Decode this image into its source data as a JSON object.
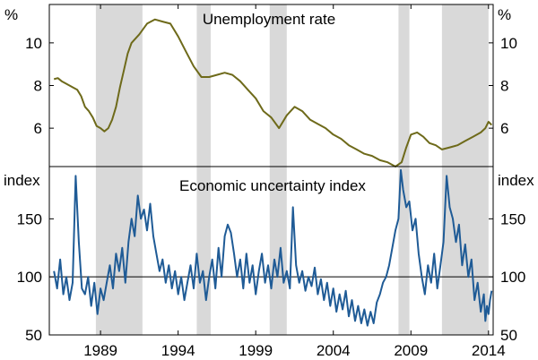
{
  "chart_data": [
    {
      "type": "line",
      "title": "Unemployment rate",
      "unit_left": "%",
      "unit_right": "%",
      "y_ticks": [
        "6",
        "8",
        "10"
      ],
      "ylim": [
        4.2,
        11.8
      ],
      "xlim": [
        1985.7,
        2014.3
      ],
      "shading_periods": [
        [
          1988.7,
          1991.7
        ],
        [
          1995.2,
          1996.1
        ],
        [
          1999.9,
          2001.0
        ],
        [
          2008.2,
          2008.9
        ],
        [
          2011.0,
          2014.0
        ]
      ],
      "series": [
        {
          "color": "#6e6a1a",
          "points": [
            [
              1986.0,
              8.3
            ],
            [
              1986.25,
              8.35
            ],
            [
              1986.5,
              8.2
            ],
            [
              1986.75,
              8.1
            ],
            [
              1987.0,
              8.0
            ],
            [
              1987.25,
              7.9
            ],
            [
              1987.5,
              7.8
            ],
            [
              1987.75,
              7.5
            ],
            [
              1988.0,
              7.0
            ],
            [
              1988.25,
              6.8
            ],
            [
              1988.5,
              6.5
            ],
            [
              1988.75,
              6.1
            ],
            [
              1989.0,
              6.0
            ],
            [
              1989.25,
              5.85
            ],
            [
              1989.5,
              6.0
            ],
            [
              1989.75,
              6.4
            ],
            [
              1990.0,
              7.0
            ],
            [
              1990.25,
              7.9
            ],
            [
              1990.5,
              8.7
            ],
            [
              1990.75,
              9.5
            ],
            [
              1991.0,
              10.0
            ],
            [
              1991.5,
              10.4
            ],
            [
              1992.0,
              10.9
            ],
            [
              1992.5,
              11.1
            ],
            [
              1993.0,
              11.0
            ],
            [
              1993.5,
              10.9
            ],
            [
              1994.0,
              10.3
            ],
            [
              1994.5,
              9.6
            ],
            [
              1995.0,
              8.9
            ],
            [
              1995.5,
              8.4
            ],
            [
              1996.0,
              8.4
            ],
            [
              1996.5,
              8.5
            ],
            [
              1997.0,
              8.6
            ],
            [
              1997.5,
              8.5
            ],
            [
              1998.0,
              8.2
            ],
            [
              1998.5,
              7.8
            ],
            [
              1999.0,
              7.4
            ],
            [
              1999.5,
              6.8
            ],
            [
              2000.0,
              6.5
            ],
            [
              2000.5,
              6.0
            ],
            [
              2001.0,
              6.6
            ],
            [
              2001.5,
              7.0
            ],
            [
              2002.0,
              6.8
            ],
            [
              2002.5,
              6.4
            ],
            [
              2003.0,
              6.2
            ],
            [
              2003.5,
              6.0
            ],
            [
              2004.0,
              5.7
            ],
            [
              2004.5,
              5.5
            ],
            [
              2005.0,
              5.2
            ],
            [
              2005.5,
              5.0
            ],
            [
              2006.0,
              4.8
            ],
            [
              2006.5,
              4.7
            ],
            [
              2007.0,
              4.5
            ],
            [
              2007.5,
              4.4
            ],
            [
              2008.0,
              4.2
            ],
            [
              2008.4,
              4.4
            ],
            [
              2008.7,
              5.1
            ],
            [
              2009.0,
              5.7
            ],
            [
              2009.4,
              5.8
            ],
            [
              2009.8,
              5.6
            ],
            [
              2010.2,
              5.3
            ],
            [
              2010.6,
              5.2
            ],
            [
              2011.0,
              5.0
            ],
            [
              2011.5,
              5.1
            ],
            [
              2012.0,
              5.2
            ],
            [
              2012.5,
              5.4
            ],
            [
              2013.0,
              5.6
            ],
            [
              2013.5,
              5.8
            ],
            [
              2013.8,
              6.0
            ],
            [
              2014.0,
              6.3
            ],
            [
              2014.2,
              6.15
            ]
          ]
        }
      ]
    },
    {
      "type": "line",
      "title": "Economic uncertainty index",
      "unit_left": "index",
      "unit_right": "index",
      "y_ticks": [
        "50",
        "100",
        "150"
      ],
      "ylim": [
        50,
        195
      ],
      "reference_line": 100,
      "xlim": [
        1985.7,
        2014.3
      ],
      "x_ticks": [
        "1989",
        "1994",
        "1999",
        "2004",
        "2009",
        "2014"
      ],
      "shading_periods": [
        [
          1988.7,
          1991.7
        ],
        [
          1995.2,
          1996.1
        ],
        [
          1999.9,
          2001.0
        ],
        [
          2008.2,
          2008.9
        ],
        [
          2011.0,
          2014.0
        ]
      ],
      "series": [
        {
          "color": "#1f5b96",
          "points": [
            [
              1986.0,
              105
            ],
            [
              1986.2,
              90
            ],
            [
              1986.4,
              115
            ],
            [
              1986.6,
              85
            ],
            [
              1986.8,
              100
            ],
            [
              1987.0,
              80
            ],
            [
              1987.2,
              95
            ],
            [
              1987.4,
              187
            ],
            [
              1987.6,
              130
            ],
            [
              1987.8,
              90
            ],
            [
              1988.0,
              85
            ],
            [
              1988.2,
              100
            ],
            [
              1988.4,
              75
            ],
            [
              1988.6,
              95
            ],
            [
              1988.8,
              68
            ],
            [
              1989.0,
              90
            ],
            [
              1989.2,
              80
            ],
            [
              1989.4,
              95
            ],
            [
              1989.6,
              110
            ],
            [
              1989.8,
              90
            ],
            [
              1990.0,
              120
            ],
            [
              1990.2,
              105
            ],
            [
              1990.4,
              125
            ],
            [
              1990.6,
              95
            ],
            [
              1990.8,
              130
            ],
            [
              1991.0,
              150
            ],
            [
              1991.2,
              135
            ],
            [
              1991.4,
              170
            ],
            [
              1991.6,
              150
            ],
            [
              1991.8,
              158
            ],
            [
              1992.0,
              140
            ],
            [
              1992.2,
              163
            ],
            [
              1992.4,
              135
            ],
            [
              1992.6,
              120
            ],
            [
              1992.8,
              105
            ],
            [
              1993.0,
              115
            ],
            [
              1993.2,
              95
            ],
            [
              1993.4,
              110
            ],
            [
              1993.6,
              90
            ],
            [
              1993.8,
              105
            ],
            [
              1994.0,
              85
            ],
            [
              1994.2,
              100
            ],
            [
              1994.4,
              80
            ],
            [
              1994.6,
              95
            ],
            [
              1994.8,
              110
            ],
            [
              1995.0,
              90
            ],
            [
              1995.2,
              120
            ],
            [
              1995.4,
              95
            ],
            [
              1995.6,
              105
            ],
            [
              1995.8,
              80
            ],
            [
              1996.0,
              100
            ],
            [
              1996.2,
              115
            ],
            [
              1996.4,
              90
            ],
            [
              1996.6,
              125
            ],
            [
              1996.8,
              100
            ],
            [
              1997.0,
              135
            ],
            [
              1997.2,
              145
            ],
            [
              1997.4,
              138
            ],
            [
              1997.6,
              120
            ],
            [
              1997.8,
              100
            ],
            [
              1998.0,
              115
            ],
            [
              1998.2,
              90
            ],
            [
              1998.4,
              120
            ],
            [
              1998.6,
              95
            ],
            [
              1998.8,
              110
            ],
            [
              1999.0,
              85
            ],
            [
              1999.2,
              105
            ],
            [
              1999.4,
              120
            ],
            [
              1999.6,
              95
            ],
            [
              1999.8,
              110
            ],
            [
              2000.0,
              90
            ],
            [
              2000.2,
              115
            ],
            [
              2000.4,
              100
            ],
            [
              2000.6,
              125
            ],
            [
              2000.8,
              95
            ],
            [
              2001.0,
              105
            ],
            [
              2001.2,
              90
            ],
            [
              2001.4,
              160
            ],
            [
              2001.6,
              110
            ],
            [
              2001.8,
              95
            ],
            [
              2002.0,
              105
            ],
            [
              2002.2,
              88
            ],
            [
              2002.4,
              100
            ],
            [
              2002.6,
              92
            ],
            [
              2002.8,
              108
            ],
            [
              2003.0,
              85
            ],
            [
              2003.2,
              98
            ],
            [
              2003.4,
              80
            ],
            [
              2003.6,
              95
            ],
            [
              2003.8,
              75
            ],
            [
              2004.0,
              90
            ],
            [
              2004.2,
              70
            ],
            [
              2004.4,
              85
            ],
            [
              2004.6,
              72
            ],
            [
              2004.8,
              88
            ],
            [
              2005.0,
              66
            ],
            [
              2005.2,
              80
            ],
            [
              2005.4,
              62
            ],
            [
              2005.6,
              75
            ],
            [
              2005.8,
              60
            ],
            [
              2006.0,
              72
            ],
            [
              2006.2,
              58
            ],
            [
              2006.4,
              70
            ],
            [
              2006.6,
              60
            ],
            [
              2006.8,
              78
            ],
            [
              2007.0,
              85
            ],
            [
              2007.2,
              95
            ],
            [
              2007.4,
              100
            ],
            [
              2007.6,
              110
            ],
            [
              2007.8,
              125
            ],
            [
              2008.0,
              140
            ],
            [
              2008.2,
              150
            ],
            [
              2008.35,
              192
            ],
            [
              2008.5,
              175
            ],
            [
              2008.7,
              160
            ],
            [
              2008.9,
              165
            ],
            [
              2009.1,
              140
            ],
            [
              2009.3,
              150
            ],
            [
              2009.5,
              120
            ],
            [
              2009.7,
              100
            ],
            [
              2009.9,
              85
            ],
            [
              2010.1,
              110
            ],
            [
              2010.3,
              95
            ],
            [
              2010.5,
              120
            ],
            [
              2010.7,
              90
            ],
            [
              2010.9,
              110
            ],
            [
              2011.1,
              130
            ],
            [
              2011.3,
              187
            ],
            [
              2011.5,
              160
            ],
            [
              2011.7,
              150
            ],
            [
              2011.9,
              130
            ],
            [
              2012.1,
              145
            ],
            [
              2012.3,
              110
            ],
            [
              2012.5,
              128
            ],
            [
              2012.7,
              100
            ],
            [
              2012.9,
              115
            ],
            [
              2013.1,
              80
            ],
            [
              2013.3,
              95
            ],
            [
              2013.5,
              70
            ],
            [
              2013.7,
              85
            ],
            [
              2013.8,
              62
            ],
            [
              2013.9,
              75
            ],
            [
              2014.0,
              68
            ],
            [
              2014.1,
              80
            ],
            [
              2014.2,
              88
            ]
          ]
        }
      ]
    }
  ]
}
